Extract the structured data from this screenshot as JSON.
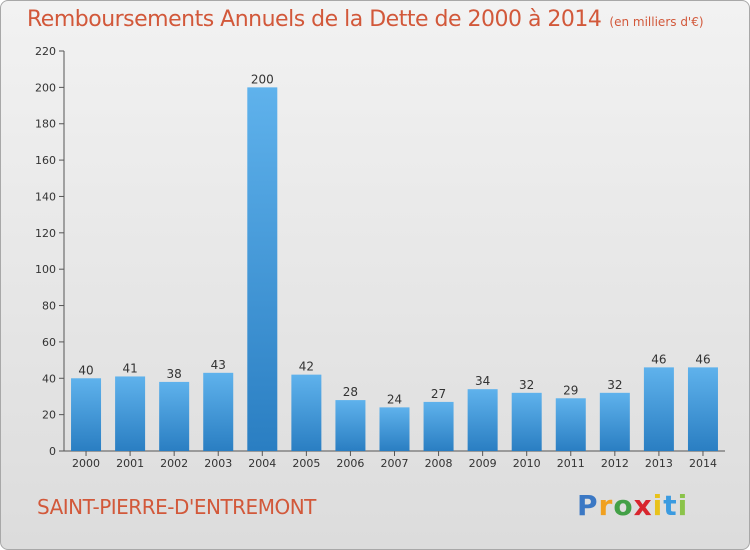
{
  "header": {
    "title": "Remboursements Annuels de la Dette de 2000 à 2014",
    "unit": "(en milliers d'€)"
  },
  "footer": {
    "commune": "SAINT-PIERRE-D'ENTREMONT",
    "logo_text": "Proxiti"
  },
  "colors": {
    "title": "#d2583a",
    "bar_top": "#5fb2ec",
    "bar_bottom": "#2a7ec2"
  },
  "chart_data": {
    "type": "bar",
    "title": "Remboursements Annuels de la Dette de 2000 à 2014",
    "xlabel": "",
    "ylabel": "",
    "categories": [
      "2000",
      "2001",
      "2002",
      "2003",
      "2004",
      "2005",
      "2006",
      "2007",
      "2008",
      "2009",
      "2010",
      "2011",
      "2012",
      "2013",
      "2014"
    ],
    "values": [
      40,
      41,
      38,
      43,
      200,
      42,
      28,
      24,
      27,
      34,
      32,
      29,
      32,
      46,
      46
    ],
    "ylim": [
      0,
      220
    ],
    "yticks": [
      0,
      20,
      40,
      60,
      80,
      100,
      120,
      140,
      160,
      180,
      200,
      220
    ],
    "grid": false,
    "legend": "none"
  }
}
